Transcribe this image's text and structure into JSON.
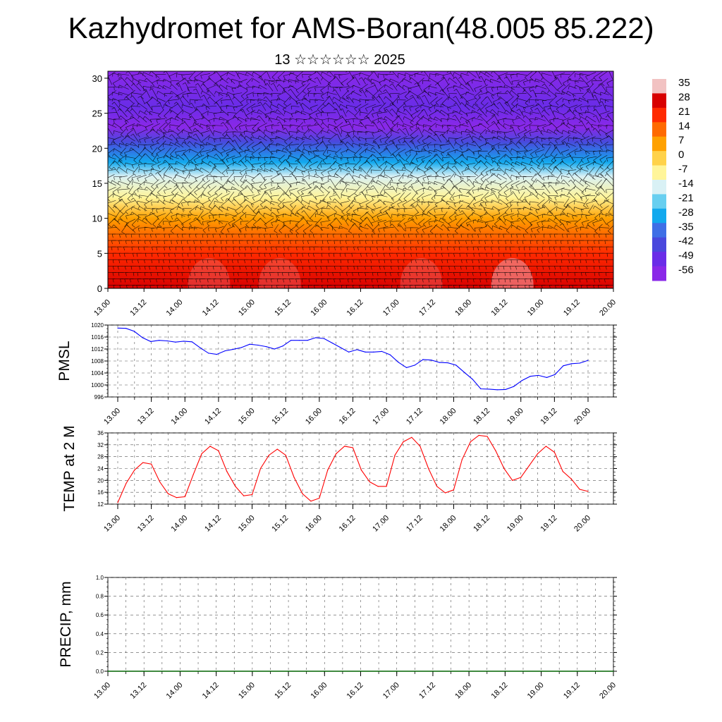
{
  "header": {
    "title": "Kazhydromet for AMS-Boran(48.005 85.222)",
    "subtitle": "13 ☆☆☆☆☆☆ 2025"
  },
  "chart_data": [
    {
      "type": "heatmap",
      "title": "",
      "xlabel": "",
      "ylabel": "",
      "x_ticks": [
        "13.00",
        "13.12",
        "14.00",
        "14.12",
        "15.00",
        "15.12",
        "16.00",
        "16.12",
        "17.00",
        "17.12",
        "18.00",
        "18.12",
        "19.00",
        "19.12",
        "20.00"
      ],
      "y_ticks": [
        0,
        5,
        10,
        15,
        20,
        25,
        30
      ],
      "ylim": [
        0,
        31
      ],
      "colorbar": {
        "labels": [
          "35",
          "28",
          "21",
          "14",
          "7",
          "0",
          "-7",
          "-14",
          "-21",
          "-28",
          "-35",
          "-42",
          "-49",
          "-56"
        ],
        "colors": [
          "#f2c2c2",
          "#d80000",
          "#ff2a00",
          "#ff6a00",
          "#ffa100",
          "#ffd24a",
          "#fff59a",
          "#d9f1f5",
          "#68cff0",
          "#12a9ee",
          "#3f6fe6",
          "#4a48dd",
          "#6a2ce8",
          "#8a28e8"
        ]
      },
      "vertical_profile": [
        {
          "level": 0,
          "value": 28
        },
        {
          "level": 5,
          "value": 20
        },
        {
          "level": 10,
          "value": 5
        },
        {
          "level": 13,
          "value": -5
        },
        {
          "level": 16,
          "value": -14
        },
        {
          "level": 18,
          "value": -30
        },
        {
          "level": 21,
          "value": -45
        },
        {
          "level": 23,
          "value": -56
        },
        {
          "level": 26,
          "value": -49
        },
        {
          "level": 31,
          "value": -56
        }
      ],
      "vectors": "wind barbs",
      "grid": false
    },
    {
      "type": "line",
      "ylabel": "PMSL",
      "ylim": [
        996,
        1020
      ],
      "y_ticks": [
        996,
        1000,
        1004,
        1008,
        1012,
        1016,
        1020
      ],
      "x_ticks": [
        "13.00",
        "13.12",
        "14.00",
        "14.12",
        "15.00",
        "15.12",
        "16.00",
        "16.12",
        "17.00",
        "17.12",
        "18.00",
        "18.12",
        "19.00",
        "19.12",
        "20.00"
      ],
      "grid": true,
      "series": [
        {
          "color": "#0000ff",
          "values": [
            1019.0,
            1018.9,
            1017.9,
            1015.8,
            1014.5,
            1014.9,
            1014.7,
            1014.3,
            1014.6,
            1014.4,
            1012.4,
            1010.6,
            1010.2,
            1011.4,
            1011.9,
            1012.5,
            1013.6,
            1013.3,
            1012.8,
            1012.0,
            1013.0,
            1014.9,
            1014.9,
            1014.9,
            1015.8,
            1015.5,
            1014.0,
            1012.5,
            1011.0,
            1011.8,
            1011.0,
            1011.0,
            1011.2,
            1010.1,
            1007.6,
            1005.8,
            1006.6,
            1008.5,
            1008.3,
            1007.5,
            1007.4,
            1006.6,
            1004.2,
            1001.9,
            998.7,
            998.6,
            998.4,
            998.5,
            999.5,
            1001.5,
            1002.9,
            1003.2,
            1002.5,
            1003.5,
            1006.4,
            1007.1,
            1007.3,
            1008.2
          ]
        }
      ]
    },
    {
      "type": "line",
      "ylabel": "TEMP at 2 M",
      "ylim": [
        12,
        36
      ],
      "y_ticks": [
        12,
        16,
        20,
        24,
        28,
        32,
        36
      ],
      "x_ticks": [
        "13.00",
        "13.12",
        "14.00",
        "14.12",
        "15.00",
        "15.12",
        "16.00",
        "16.12",
        "17.00",
        "17.12",
        "18.00",
        "18.12",
        "19.00",
        "19.12",
        "20.00"
      ],
      "grid": true,
      "series": [
        {
          "color": "#ff0000",
          "values": [
            12.5,
            19.0,
            23.5,
            26.0,
            25.5,
            19.5,
            15.5,
            14.2,
            14.5,
            22.0,
            29.0,
            31.5,
            30.0,
            23.0,
            18.0,
            14.8,
            15.2,
            24.0,
            28.5,
            30.5,
            28.5,
            21.0,
            15.5,
            13.0,
            14.0,
            23.5,
            29.0,
            31.5,
            31.0,
            23.5,
            19.5,
            18.0,
            18.0,
            28.5,
            33.0,
            34.5,
            31.5,
            24.0,
            18.0,
            15.8,
            16.8,
            27.0,
            33.0,
            35.2,
            34.8,
            30.0,
            24.0,
            20.0,
            21.0,
            25.0,
            29.0,
            31.5,
            29.5,
            23.0,
            20.5,
            17.0,
            16.3
          ]
        }
      ]
    },
    {
      "type": "line",
      "ylabel": "PRECIP, mm",
      "ylim": [
        0.0,
        1.0
      ],
      "y_ticks": [
        "0.0",
        "0.2",
        "0.4",
        "0.6",
        "0.8",
        "1.0"
      ],
      "x_ticks": [
        "13.00",
        "13.12",
        "14.00",
        "14.12",
        "15.00",
        "15.12",
        "16.00",
        "16.12",
        "17.00",
        "17.12",
        "18.00",
        "18.12",
        "19.00",
        "19.12",
        "20.00"
      ],
      "grid": true,
      "series": [
        {
          "color": "#006400",
          "values": [
            0,
            0,
            0,
            0,
            0,
            0,
            0,
            0,
            0,
            0,
            0,
            0,
            0,
            0,
            0
          ]
        }
      ]
    }
  ]
}
